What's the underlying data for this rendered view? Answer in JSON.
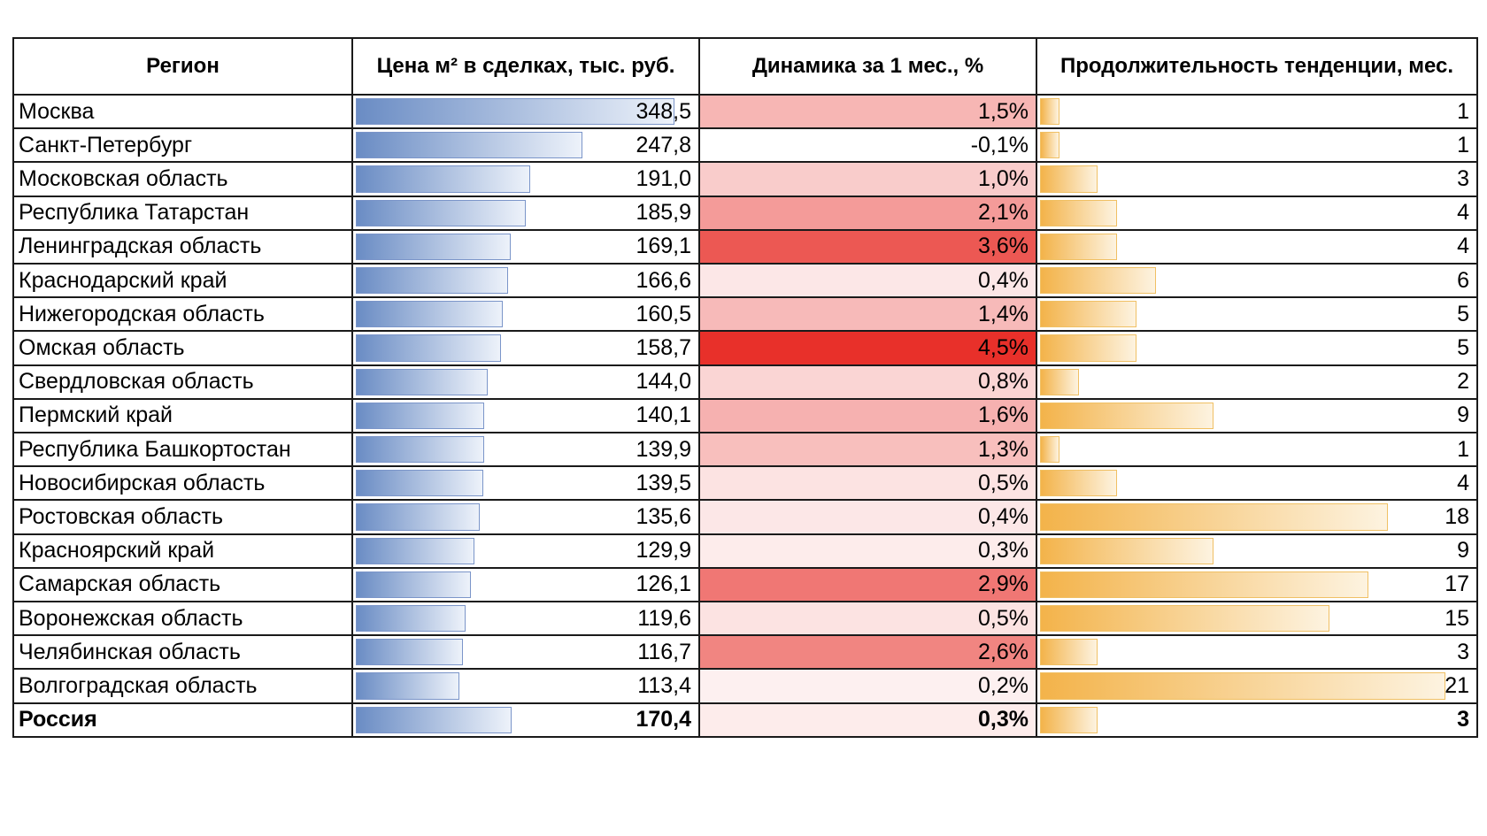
{
  "table": {
    "headers": {
      "region": "Регион",
      "price": "Цена м² в сделках, тыс. руб.",
      "dynamics": "Динамика за 1 мес., %",
      "duration": "Продолжительность тенденции, мес."
    },
    "rows": [
      {
        "region": "Москва",
        "price": "348,5",
        "dynamics": "1,5%",
        "duration": "1"
      },
      {
        "region": "Санкт-Петербург",
        "price": "247,8",
        "dynamics": "-0,1%",
        "duration": "1"
      },
      {
        "region": "Московская область",
        "price": "191,0",
        "dynamics": "1,0%",
        "duration": "3"
      },
      {
        "region": "Республика Татарстан",
        "price": "185,9",
        "dynamics": "2,1%",
        "duration": "4"
      },
      {
        "region": "Ленинградская область",
        "price": "169,1",
        "dynamics": "3,6%",
        "duration": "4"
      },
      {
        "region": "Краснодарский край",
        "price": "166,6",
        "dynamics": "0,4%",
        "duration": "6"
      },
      {
        "region": "Нижегородская область",
        "price": "160,5",
        "dynamics": "1,4%",
        "duration": "5"
      },
      {
        "region": "Омская область",
        "price": "158,7",
        "dynamics": "4,5%",
        "duration": "5"
      },
      {
        "region": "Свердловская область",
        "price": "144,0",
        "dynamics": "0,8%",
        "duration": "2"
      },
      {
        "region": "Пермский край",
        "price": "140,1",
        "dynamics": "1,6%",
        "duration": "9"
      },
      {
        "region": "Республика Башкортостан",
        "price": "139,9",
        "dynamics": "1,3%",
        "duration": "1"
      },
      {
        "region": "Новосибирская область",
        "price": "139,5",
        "dynamics": "0,5%",
        "duration": "4"
      },
      {
        "region": "Ростовская область",
        "price": "135,6",
        "dynamics": "0,4%",
        "duration": "18"
      },
      {
        "region": "Красноярский край",
        "price": "129,9",
        "dynamics": "0,3%",
        "duration": "9"
      },
      {
        "region": "Самарская область",
        "price": "126,1",
        "dynamics": "2,9%",
        "duration": "17"
      },
      {
        "region": "Воронежская область",
        "price": "119,6",
        "dynamics": "0,5%",
        "duration": "15"
      },
      {
        "region": "Челябинская область",
        "price": "116,7",
        "dynamics": "2,6%",
        "duration": "3"
      },
      {
        "region": "Волгоградская область",
        "price": "113,4",
        "dynamics": "0,2%",
        "duration": "21"
      },
      {
        "region": "Россия",
        "price": "170,4",
        "dynamics": "0,3%",
        "duration": "3",
        "total": true
      }
    ]
  },
  "chart_data": {
    "type": "table",
    "columns": [
      "Регион",
      "Цена м² в сделках, тыс. руб.",
      "Динамика за 1 мес., %",
      "Продолжительность тенденции, мес."
    ],
    "categories": [
      "Москва",
      "Санкт-Петербург",
      "Московская область",
      "Республика Татарстан",
      "Ленинградская область",
      "Краснодарский край",
      "Нижегородская область",
      "Омская область",
      "Свердловская область",
      "Пермский край",
      "Республика Башкортостан",
      "Новосибирская область",
      "Ростовская область",
      "Красноярский край",
      "Самарская область",
      "Воронежская область",
      "Челябинская область",
      "Волгоградская область",
      "Россия"
    ],
    "series": [
      {
        "name": "Цена м² в сделках, тыс. руб.",
        "values": [
          348.5,
          247.8,
          191.0,
          185.9,
          169.1,
          166.6,
          160.5,
          158.7,
          144.0,
          140.1,
          139.9,
          139.5,
          135.6,
          129.9,
          126.1,
          119.6,
          116.7,
          113.4,
          170.4
        ],
        "max": 348.5
      },
      {
        "name": "Динамика за 1 мес., %",
        "values": [
          1.5,
          -0.1,
          1.0,
          2.1,
          3.6,
          0.4,
          1.4,
          4.5,
          0.8,
          1.6,
          1.3,
          0.5,
          0.4,
          0.3,
          2.9,
          0.5,
          2.6,
          0.2,
          0.3
        ],
        "min": -0.1,
        "max": 4.5
      },
      {
        "name": "Продолжительность тенденции, мес.",
        "values": [
          1,
          1,
          3,
          4,
          4,
          6,
          5,
          5,
          2,
          9,
          1,
          4,
          18,
          9,
          17,
          15,
          3,
          21,
          3
        ],
        "max": 21
      }
    ]
  },
  "colors": {
    "heat_low": "#fdf0f0",
    "heat_high": "#e8302a",
    "heat_neutral": "#ffffff"
  }
}
